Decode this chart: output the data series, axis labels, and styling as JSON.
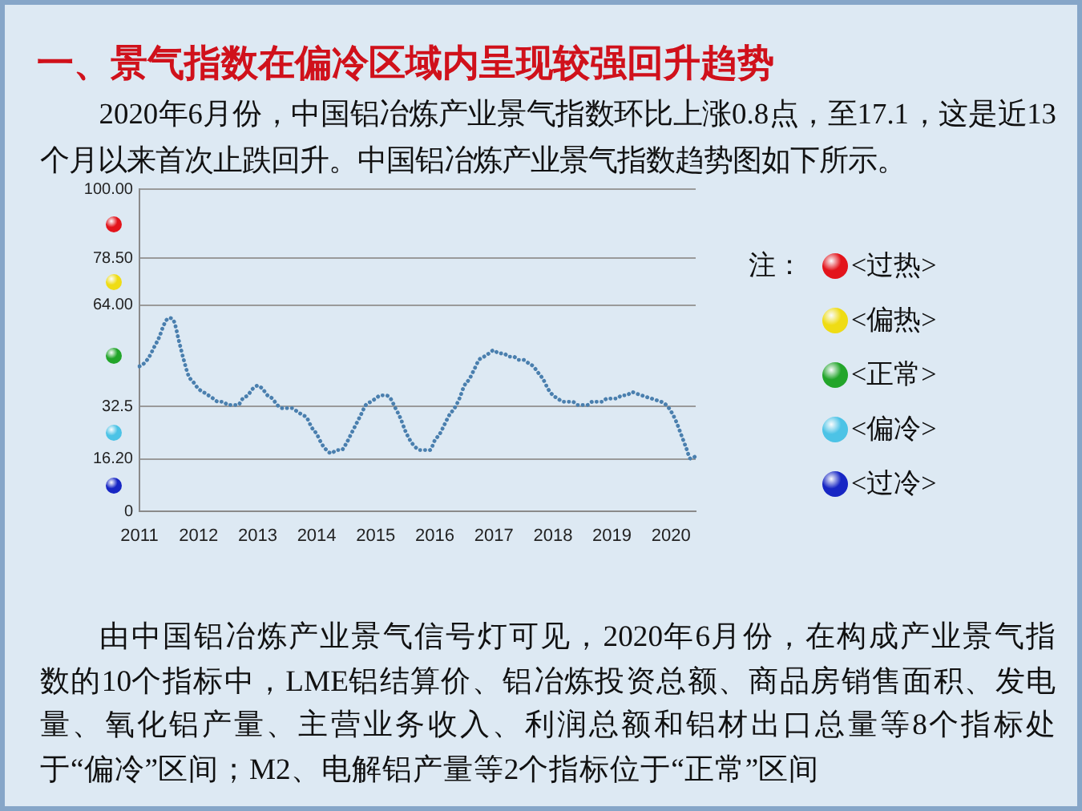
{
  "chart_data": {
    "type": "line",
    "title": "一、景气指数在偏冷区域内呈现较强回升趋势",
    "subtitle": "2020年6月份，中国铝冶炼产业景气指数环比上涨0.8点，至17.1，这是近13个月以来首次止跌回升。中国铝冶炼产业景气指数趋势图如下所示。",
    "annotations": [
      "注：",
      "<过热>",
      "<偏热>",
      "<正常>",
      "<偏冷>",
      "<过冷>",
      "由中国铝冶炼产业景气信号灯可见，2020年6月份，在构成产业景气指数的10个指标中，LME铝结算价、铝冶炼投资总额、商品房销售面积、发电量、氧化铝产量、主营业务收入、利润总额和铝材出口总量等8个指标处于“偏冷”区间；M2、电解铝产量等2个指标位于“正常”区间"
    ],
    "categories": [
      "2011",
      null,
      null,
      null,
      null,
      null,
      null,
      null,
      null,
      null,
      null,
      null,
      "2012",
      null,
      null,
      null,
      null,
      null,
      null,
      null,
      null,
      null,
      null,
      null,
      "2013",
      null,
      null,
      null,
      null,
      null,
      null,
      null,
      null,
      null,
      null,
      null,
      "2014",
      null,
      null,
      null,
      null,
      null,
      null,
      null,
      null,
      null,
      null,
      null,
      "2015",
      null,
      null,
      null,
      null,
      null,
      null,
      null,
      null,
      null,
      null,
      null,
      "2016",
      null,
      null,
      null,
      null,
      null,
      null,
      null,
      null,
      null,
      null,
      null,
      "2017",
      null,
      null,
      null,
      null,
      null,
      null,
      null,
      null,
      null,
      null,
      null,
      "2018",
      null,
      null,
      null,
      null,
      null,
      null,
      null,
      null,
      null,
      null,
      null,
      "2019",
      null,
      null,
      null,
      null,
      null,
      null,
      null,
      null,
      null,
      null,
      null,
      "2020",
      null,
      null,
      null,
      null,
      null
    ],
    "values": [
      45,
      46,
      48,
      51,
      54,
      58,
      60,
      59,
      53,
      47,
      42,
      40,
      38,
      37,
      36,
      35,
      34,
      34,
      33,
      33,
      33,
      35,
      36,
      38,
      39,
      38,
      36,
      35,
      33,
      32,
      32,
      32,
      31,
      30,
      29,
      26,
      24,
      21,
      19,
      18,
      19,
      19,
      21,
      24,
      27,
      30,
      33,
      34,
      35,
      36,
      36,
      35,
      32,
      29,
      25,
      22,
      20,
      19,
      19,
      19,
      22,
      24,
      27,
      30,
      32,
      35,
      39,
      41,
      44,
      47,
      48,
      49,
      50,
      49,
      49,
      48,
      48,
      47,
      47,
      46,
      45,
      43,
      41,
      38,
      36,
      35,
      34,
      34,
      34,
      33,
      33,
      33,
      34,
      34,
      34,
      35,
      35,
      35,
      36,
      36,
      37,
      36.5,
      36,
      35.5,
      35,
      34.5,
      34,
      33,
      31,
      28,
      24,
      20,
      16.3,
      17.1
    ],
    "color": "#4a7fae",
    "line_style": "dotted",
    "ylim": [
      0,
      100
    ],
    "yticks": [
      0,
      {
        "value": 16.2,
        "label": "16.20"
      },
      32.5,
      {
        "value": 64,
        "label": "64.00"
      },
      {
        "value": 78.5,
        "label": "78.50"
      },
      {
        "value": 100,
        "label": "100.00"
      }
    ],
    "grid": "y"
  }
}
